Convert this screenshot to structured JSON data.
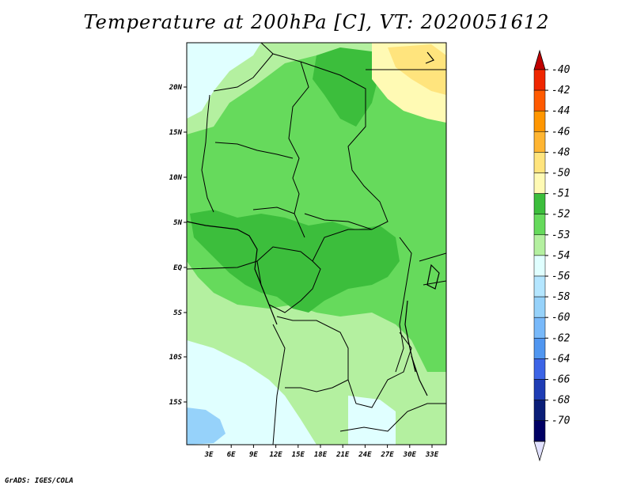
{
  "title": "Temperature at 200hPa [C], VT: 2020051612",
  "credit": "GrADS: IGES/COLA",
  "lat_labels": [
    "20N",
    "15N",
    "10N",
    "5N",
    "EQ",
    "5S",
    "10S",
    "15S"
  ],
  "lon_labels": [
    "3E",
    "6E",
    "9E",
    "12E",
    "15E",
    "18E",
    "21E",
    "24E",
    "27E",
    "30E",
    "33E"
  ],
  "colorbar": {
    "labels": [
      "-40",
      "-42",
      "-44",
      "-46",
      "-48",
      "-50",
      "-51",
      "-52",
      "-53",
      "-54",
      "-56",
      "-58",
      "-60",
      "-62",
      "-64",
      "-66",
      "-68",
      "-70"
    ],
    "colors": [
      "#c00000",
      "#ef2600",
      "#ff5a00",
      "#ff9600",
      "#ffb532",
      "#ffe47d",
      "#fffab4",
      "#3cbe3c",
      "#66da5c",
      "#b4f0a0",
      "#e0ffff",
      "#b4e6ff",
      "#96d2fa",
      "#78b9fa",
      "#5096f0",
      "#3c64e6",
      "#1e3cb4",
      "#0a1e78",
      "#000064",
      "#e1e1ff"
    ]
  },
  "map_colors": {
    "lev_m51_m52": "#3cbe3c",
    "lev_m52_m53": "#66da5c",
    "lev_m53_m54": "#b4f0a0",
    "lev_m54_m56": "#e0ffff",
    "lev_m56_m58": "#b4e6ff",
    "lev_m58_m60": "#96d2fa",
    "lev_m50_m51": "#fffab4",
    "lev_m48_m50": "#ffe47d"
  }
}
